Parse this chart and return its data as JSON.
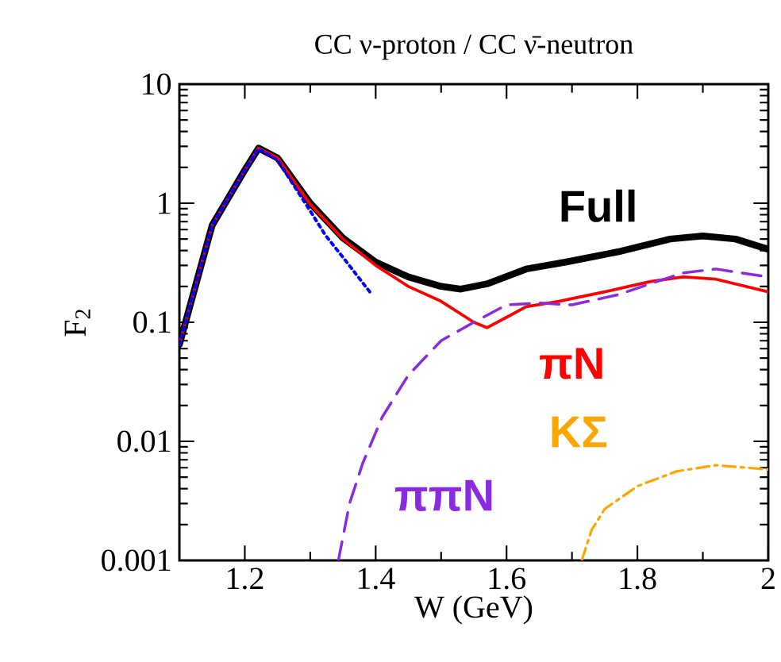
{
  "chart_data": {
    "type": "line",
    "title": "CC ν-proton / CC ν̄-neutron",
    "xlabel": "W (GeV)",
    "ylabel": "F$_{2}$",
    "log": "y",
    "xlim": [
      1.1,
      2.0
    ],
    "ylim": [
      0.001,
      10
    ],
    "xticks": [
      1.2,
      1.4,
      1.6,
      1.8,
      2
    ],
    "yticks": [
      0.001,
      0.01,
      0.1,
      1,
      10
    ],
    "grid": false,
    "legend": false,
    "marker": "none",
    "series": [
      {
        "name": "Full",
        "color": "#000000",
        "line_style": "solid",
        "x": [
          1.1,
          1.15,
          1.2,
          1.221,
          1.25,
          1.3,
          1.35,
          1.4,
          1.45,
          1.5,
          1.53,
          1.57,
          1.63,
          1.69,
          1.77,
          1.85,
          1.9,
          1.95,
          2.0
        ],
        "values": [
          0.065,
          0.65,
          1.9,
          2.9,
          2.4,
          1.0,
          0.51,
          0.32,
          0.24,
          0.2,
          0.19,
          0.21,
          0.28,
          0.32,
          0.39,
          0.5,
          0.53,
          0.5,
          0.41
        ]
      },
      {
        "name": "πN",
        "color": "#ff0000",
        "line_style": "solid",
        "x": [
          1.1,
          1.15,
          1.2,
          1.221,
          1.25,
          1.3,
          1.35,
          1.4,
          1.45,
          1.5,
          1.55,
          1.57,
          1.6,
          1.63,
          1.68,
          1.75,
          1.82,
          1.87,
          1.92,
          2.0
        ],
        "values": [
          0.065,
          0.65,
          1.9,
          2.9,
          2.4,
          0.98,
          0.5,
          0.3,
          0.2,
          0.15,
          0.1,
          0.09,
          0.11,
          0.135,
          0.15,
          0.18,
          0.22,
          0.24,
          0.23,
          0.18
        ]
      },
      {
        "name": "ππN",
        "color": "#8a2be2",
        "line_style": "dashed",
        "x": [
          1.343,
          1.36,
          1.38,
          1.41,
          1.45,
          1.5,
          1.55,
          1.6,
          1.65,
          1.7,
          1.77,
          1.83,
          1.87,
          1.92,
          2.0
        ],
        "values": [
          0.001,
          0.003,
          0.0065,
          0.016,
          0.036,
          0.07,
          0.1,
          0.14,
          0.145,
          0.14,
          0.17,
          0.22,
          0.26,
          0.28,
          0.24
        ]
      },
      {
        "name": "KΣ",
        "color": "#ffa500",
        "line_style": "dashdot",
        "x": [
          1.715,
          1.73,
          1.75,
          1.8,
          1.86,
          1.92,
          2.0
        ],
        "values": [
          0.001,
          0.0018,
          0.0027,
          0.0042,
          0.0056,
          0.0063,
          0.0058
        ]
      },
      {
        "color": "#0000ff",
        "line_style": "dotted",
        "x": [
          1.1,
          1.15,
          1.2,
          1.221,
          1.25,
          1.3,
          1.323,
          1.352,
          1.391
        ],
        "values": [
          0.065,
          0.65,
          1.9,
          2.85,
          2.3,
          0.86,
          0.54,
          0.34,
          0.18
        ]
      }
    ]
  }
}
